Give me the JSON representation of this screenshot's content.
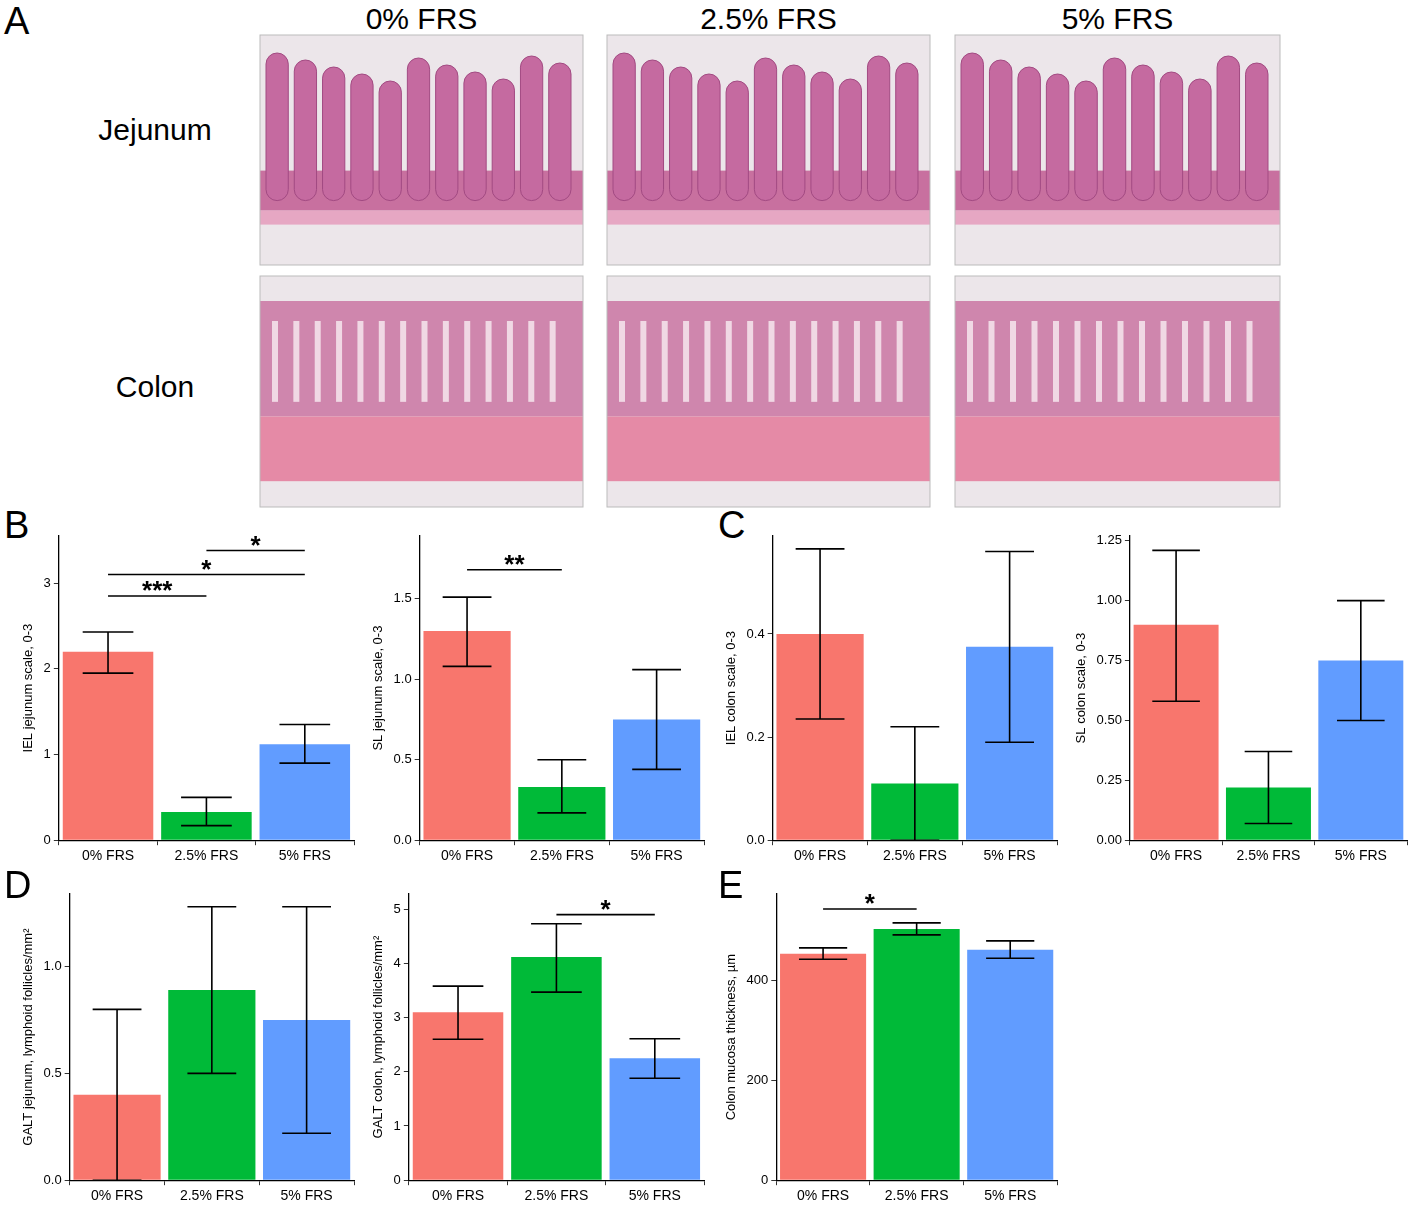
{
  "image_panel": {
    "panel": "A",
    "columns": [
      "0% FRS",
      "2.5% FRS",
      "5% FRS"
    ],
    "rows": [
      "Jejunum",
      "Colon"
    ]
  },
  "chart_data": [
    {
      "type": "bar",
      "panel": "B",
      "ylabel": "IEL jejunum scale, 0-3",
      "categories": [
        "0% FRS",
        "2.5% FRS",
        "5% FRS"
      ],
      "values": [
        2.2,
        0.33,
        1.12
      ],
      "error_low": [
        1.95,
        0.17,
        0.9
      ],
      "error_high": [
        2.43,
        0.5,
        1.35
      ],
      "colors": [
        "#F8766D",
        "#00BA38",
        "#619CFF"
      ],
      "ylim": [
        0,
        3.55
      ],
      "yticks": [
        0,
        1,
        2,
        3
      ],
      "grid": false,
      "annotations": [
        {
          "from": "0% FRS",
          "to": "2.5% FRS",
          "label": "***",
          "y": 2.85
        },
        {
          "from": "0% FRS",
          "to": "5% FRS",
          "label": "*",
          "y": 3.1
        },
        {
          "from": "2.5% FRS",
          "to": "5% FRS",
          "label": "*",
          "y": 3.38
        }
      ]
    },
    {
      "type": "bar",
      "ylabel": "SL jejunum scale, 0-3",
      "categories": [
        "0% FRS",
        "2.5% FRS",
        "5% FRS"
      ],
      "values": [
        1.3,
        0.33,
        0.75
      ],
      "error_low": [
        1.08,
        0.17,
        0.44
      ],
      "error_high": [
        1.51,
        0.5,
        1.06
      ],
      "colors": [
        "#F8766D",
        "#00BA38",
        "#619CFF"
      ],
      "ylim": [
        0,
        1.89
      ],
      "yticks": [
        {
          "value": 0,
          "label": "0.0"
        },
        {
          "value": 0.5,
          "label": "0.5"
        },
        {
          "value": 1,
          "label": "1.0"
        },
        {
          "value": 1.5,
          "label": "1.5"
        }
      ],
      "grid": false,
      "annotations": [
        {
          "from": "0% FRS",
          "to": "2.5% FRS",
          "label": "**",
          "y": 1.68
        }
      ]
    },
    {
      "type": "bar",
      "panel": "C",
      "ylabel": "IEL colon scale, 0-3",
      "categories": [
        "0% FRS",
        "2.5% FRS",
        "5% FRS"
      ],
      "values": [
        0.4,
        0.11,
        0.375
      ],
      "error_low": [
        0.235,
        0,
        0.19
      ],
      "error_high": [
        0.565,
        0.22,
        0.56
      ],
      "colors": [
        "#F8766D",
        "#00BA38",
        "#619CFF"
      ],
      "ylim": [
        0,
        0.59
      ],
      "yticks": [
        {
          "value": 0,
          "label": "0.0"
        },
        {
          "value": 0.2,
          "label": "0.2"
        },
        {
          "value": 0.4,
          "label": "0.4"
        }
      ],
      "grid": false
    },
    {
      "type": "bar",
      "ylabel": "SL colon scale, 0-3",
      "categories": [
        "0% FRS",
        "2.5% FRS",
        "5% FRS"
      ],
      "values": [
        0.9,
        0.22,
        0.75
      ],
      "error_low": [
        0.58,
        0.07,
        0.5
      ],
      "error_high": [
        1.21,
        0.37,
        1.0
      ],
      "colors": [
        "#F8766D",
        "#00BA38",
        "#619CFF"
      ],
      "ylim": [
        0,
        1.27
      ],
      "yticks": [
        {
          "value": 0,
          "label": "0.00"
        },
        {
          "value": 0.25,
          "label": "0.25"
        },
        {
          "value": 0.5,
          "label": "0.50"
        },
        {
          "value": 0.75,
          "label": "0.75"
        },
        {
          "value": 1,
          "label": "1.00"
        },
        {
          "value": 1.25,
          "label": "1.25"
        }
      ],
      "grid": false
    },
    {
      "type": "bar",
      "panel": "D",
      "ylabel": "GALT jejunum, lymphoid follicles/mm²",
      "categories": [
        "0% FRS",
        "2.5% FRS",
        "5% FRS"
      ],
      "values": [
        0.4,
        0.89,
        0.75
      ],
      "error_low": [
        0,
        0.5,
        0.22
      ],
      "error_high": [
        0.8,
        1.28,
        1.28
      ],
      "colors": [
        "#F8766D",
        "#00BA38",
        "#619CFF"
      ],
      "ylim": [
        0,
        1.34
      ],
      "yticks": [
        {
          "value": 0,
          "label": "0.0"
        },
        {
          "value": 0.5,
          "label": "0.5"
        },
        {
          "value": 1,
          "label": "1.0"
        }
      ],
      "grid": false
    },
    {
      "type": "bar",
      "ylabel": "GALT colon, lymphoid follicles/mm²",
      "categories": [
        "0% FRS",
        "2.5% FRS",
        "5% FRS"
      ],
      "values": [
        3.1,
        4.12,
        2.25
      ],
      "error_low": [
        2.6,
        3.47,
        1.88
      ],
      "error_high": [
        3.58,
        4.73,
        2.61
      ],
      "colors": [
        "#F8766D",
        "#00BA38",
        "#619CFF"
      ],
      "ylim": [
        0,
        5.28
      ],
      "yticks": [
        0,
        1,
        2,
        3,
        4,
        5
      ],
      "grid": false,
      "annotations": [
        {
          "from": "2.5% FRS",
          "to": "5% FRS",
          "label": "*",
          "y": 4.9
        }
      ]
    },
    {
      "type": "bar",
      "panel": "E",
      "ylabel": "Colon mucosa thickness, µm",
      "categories": [
        "0% FRS",
        "2.5% FRS",
        "5% FRS"
      ],
      "values": [
        454,
        504,
        462
      ],
      "error_low": [
        443,
        492,
        445
      ],
      "error_high": [
        466,
        516,
        480
      ],
      "colors": [
        "#F8766D",
        "#00BA38",
        "#619CFF"
      ],
      "ylim": [
        0,
        574
      ],
      "yticks": [
        0,
        200,
        400
      ],
      "grid": false,
      "annotations": [
        {
          "from": "0% FRS",
          "to": "2.5% FRS",
          "label": "*",
          "y": 544
        }
      ]
    }
  ]
}
